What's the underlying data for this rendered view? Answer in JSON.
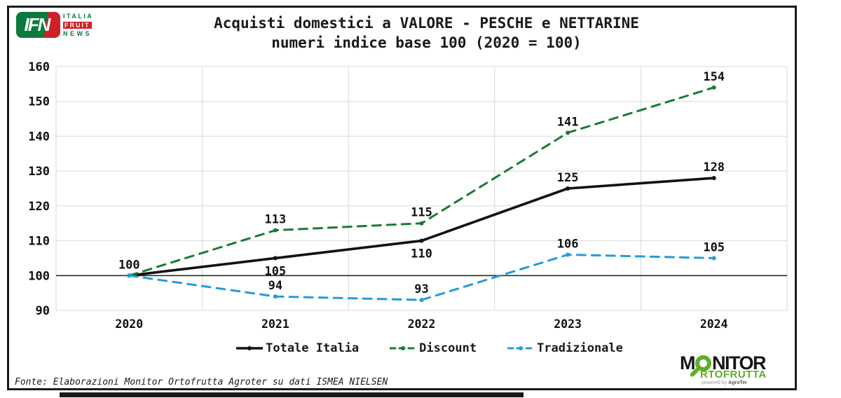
{
  "header": {
    "ifn_logo": {
      "acronym": "IFN",
      "word1": "ITALIA",
      "word2": "FRUIT",
      "word3": "NEWS"
    },
    "title_line1": "Acquisti domestici a VALORE - PESCHE e NETTARINE",
    "title_line2": "numeri indice base 100 (2020 = 100)"
  },
  "chart_data": {
    "type": "line",
    "title": "Acquisti domestici a VALORE - PESCHE e NETTARINE",
    "subtitle": "numeri indice base 100 (2020 = 100)",
    "categories": [
      "2020",
      "2021",
      "2022",
      "2023",
      "2024"
    ],
    "series": [
      {
        "name": "Totale Italia",
        "color": "#121212",
        "style": "solid",
        "values": [
          100,
          105,
          110,
          125,
          128
        ],
        "labels": {
          "show": [
            true,
            true,
            true,
            true,
            true
          ],
          "pos": [
            "above",
            "below",
            "below",
            "above",
            "above"
          ]
        }
      },
      {
        "name": "Discount",
        "color": "#1a7a34",
        "style": "dashed",
        "values": [
          100,
          113,
          115,
          141,
          154
        ],
        "labels": {
          "show": [
            false,
            true,
            true,
            true,
            true
          ],
          "pos": [
            "above",
            "above",
            "above",
            "above",
            "above"
          ]
        }
      },
      {
        "name": "Tradizionale",
        "color": "#259bd8",
        "style": "dashed",
        "values": [
          100,
          94,
          93,
          106,
          105
        ],
        "labels": {
          "show": [
            false,
            true,
            true,
            true,
            true
          ],
          "pos": [
            "above",
            "above",
            "above",
            "above",
            "above"
          ]
        }
      }
    ],
    "ylim": [
      90,
      160
    ],
    "yticks": [
      160,
      150,
      140,
      130,
      120,
      110,
      100,
      90
    ],
    "baseline_value": 100,
    "grid": true,
    "legend_position": "bottom",
    "colors": {
      "gridline": "#d9d9d9",
      "baseline": "#2b2b2b",
      "label": "#111111"
    }
  },
  "footer": {
    "source": "Fonte: Elaborazioni Monitor Ortofrutta Agroter su dati ISMEA NIELSEN"
  },
  "monitor_logo": {
    "prefix": "M",
    "suffix": "NITOR",
    "line2": "RTOFRUTTA",
    "powered_by": "powered by",
    "brand": "AgroTer"
  }
}
